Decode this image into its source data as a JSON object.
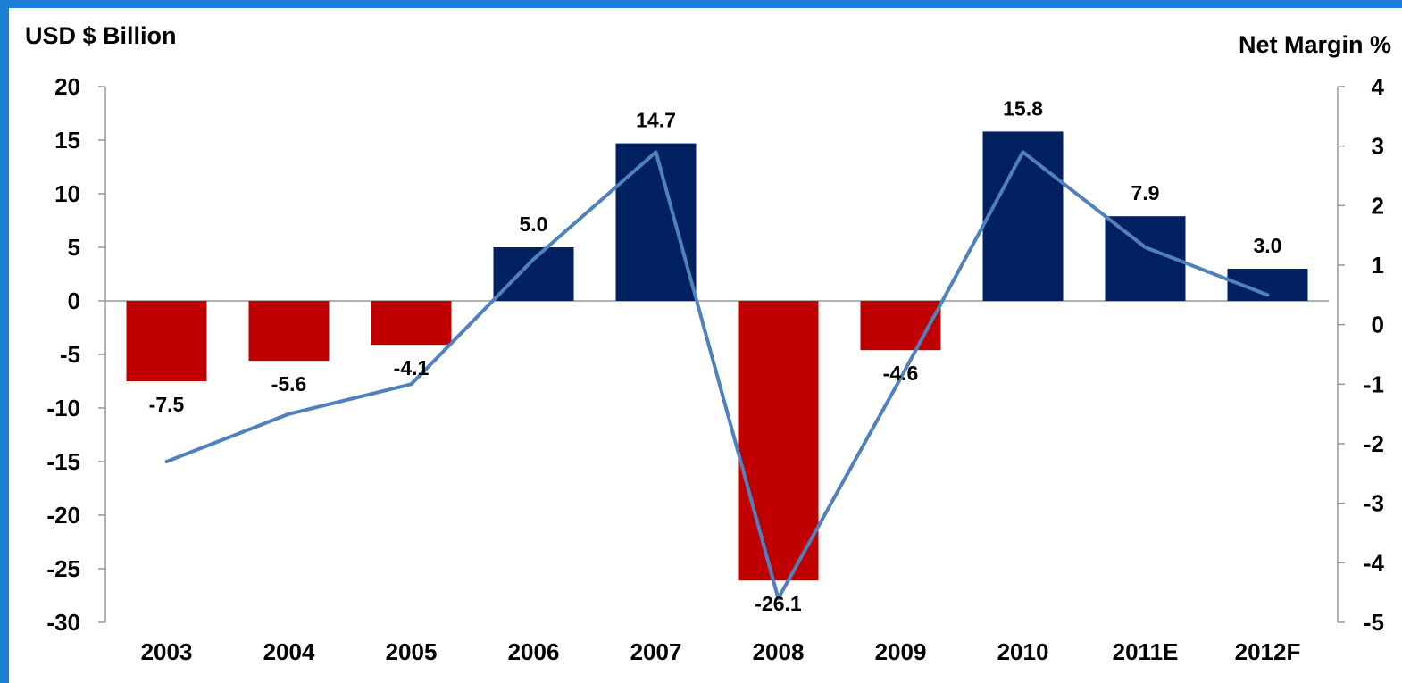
{
  "chart_data": {
    "type": "bar",
    "left_axis_title": "USD $ Billion",
    "right_axis_title": "Net Margin %",
    "categories": [
      "2003",
      "2004",
      "2005",
      "2006",
      "2007",
      "2008",
      "2009",
      "2010",
      "2011E",
      "2012F"
    ],
    "series": [
      {
        "type": "bar",
        "axis": "left",
        "values": [
          -7.5,
          -5.6,
          -4.1,
          5.0,
          14.7,
          -26.1,
          -4.6,
          15.8,
          7.9,
          3.0
        ],
        "labels": [
          "-7.5",
          "-5.6",
          "-4.1",
          "5.0",
          "14.7",
          "-26.1",
          "-4.6",
          "15.8",
          "7.9",
          "3.0"
        ],
        "positive_color": "#002060",
        "negative_color": "#c00000"
      },
      {
        "type": "line",
        "axis": "right",
        "values": [
          -2.3,
          -1.5,
          -1.0,
          1.1,
          2.9,
          -4.6,
          -0.9,
          2.9,
          1.3,
          0.5
        ],
        "color": "#4f81bd"
      }
    ],
    "y_left": {
      "min": -30,
      "max": 20,
      "ticks": [
        20,
        15,
        10,
        5,
        0,
        -5,
        -10,
        -15,
        -20,
        -25,
        -30
      ]
    },
    "y_right": {
      "min": -5,
      "max": 4,
      "ticks": [
        4,
        3,
        2,
        1,
        0,
        -1,
        -2,
        -3,
        -4,
        -5
      ]
    },
    "grid": false
  }
}
